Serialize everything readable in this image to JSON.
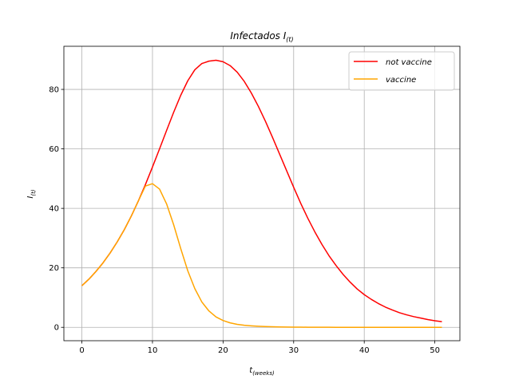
{
  "chart_data": {
    "type": "line",
    "title": "Infectados I",
    "title_subscript": "(t)",
    "xlabel": "t",
    "xlabel_subscript": "(weeks)",
    "ylabel": "I",
    "ylabel_subscript": "(t)",
    "xlim": [
      -2.55,
      53.55
    ],
    "ylim": [
      -4.5,
      94.5
    ],
    "xticks": [
      0,
      10,
      20,
      30,
      40,
      50
    ],
    "yticks": [
      0,
      20,
      40,
      60,
      80
    ],
    "grid": true,
    "legend_position": "top-right",
    "x": [
      0,
      1,
      2,
      3,
      4,
      5,
      6,
      7,
      8,
      9,
      10,
      11,
      12,
      13,
      14,
      15,
      16,
      17,
      18,
      19,
      20,
      21,
      22,
      23,
      24,
      25,
      26,
      27,
      28,
      29,
      30,
      31,
      32,
      33,
      34,
      35,
      36,
      37,
      38,
      39,
      40,
      41,
      42,
      43,
      44,
      45,
      46,
      47,
      48,
      49,
      50,
      51
    ],
    "series": [
      {
        "name": "not vaccine",
        "color": "#ff0000",
        "values": [
          14.0,
          16.2,
          18.8,
          21.7,
          25.0,
          28.7,
          32.8,
          37.4,
          42.5,
          48.0,
          53.9,
          60.0,
          66.2,
          72.3,
          78.0,
          82.9,
          86.6,
          88.7,
          89.5,
          89.8,
          89.3,
          88.0,
          85.8,
          82.7,
          78.8,
          74.3,
          69.3,
          63.9,
          58.3,
          52.7,
          47.1,
          41.7,
          36.7,
          32.1,
          27.9,
          24.1,
          20.8,
          17.8,
          15.2,
          12.9,
          11.0,
          9.4,
          8.0,
          6.8,
          5.8,
          4.9,
          4.2,
          3.6,
          3.1,
          2.6,
          2.2,
          1.9
        ]
      },
      {
        "name": "vaccine",
        "color": "#ffa500",
        "values": [
          14.0,
          16.2,
          18.8,
          21.7,
          25.0,
          28.7,
          32.8,
          37.4,
          42.5,
          47.5,
          48.3,
          46.5,
          41.5,
          34.5,
          26.5,
          19.0,
          13.0,
          8.5,
          5.5,
          3.5,
          2.3,
          1.5,
          1.0,
          0.7,
          0.5,
          0.35,
          0.25,
          0.18,
          0.13,
          0.1,
          0.07,
          0.05,
          0.04,
          0.03,
          0.02,
          0.02,
          0.01,
          0.01,
          0.01,
          0.0,
          0.0,
          0.0,
          0.0,
          0.0,
          0.0,
          0.0,
          0.0,
          0.0,
          0.0,
          0.0,
          0.0,
          0.0
        ]
      }
    ]
  }
}
